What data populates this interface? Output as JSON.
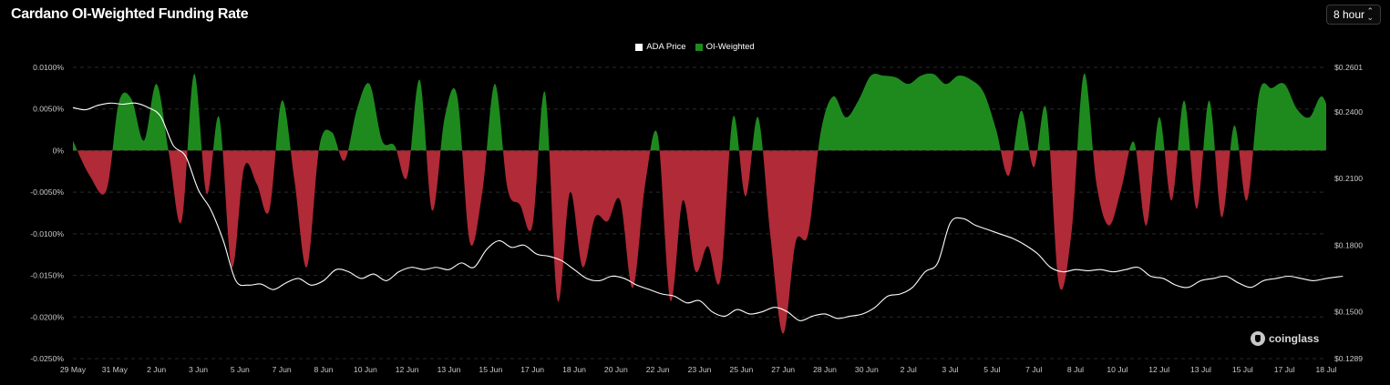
{
  "header": {
    "title": "Cardano OI-Weighted Funding Rate",
    "period_select": {
      "value": "8 hour",
      "icon": "chevron-up-down-icon"
    }
  },
  "legend": [
    {
      "label": "ADA Price",
      "color": "#ffffff"
    },
    {
      "label": "OI-Weighted",
      "color": "#1e8a1e"
    }
  ],
  "watermark": {
    "text": "coinglass",
    "icon": "coinglass-logo-icon"
  },
  "colors": {
    "positive": "#1e8a1e",
    "negative": "#b02a37",
    "price_line": "#ffffff",
    "grid": "#2a2a2a"
  },
  "chart_data": {
    "type": "area",
    "x_tick_labels": [
      "29 May",
      "31 May",
      "2 Jun",
      "3 Jun",
      "5 Jun",
      "7 Jun",
      "8 Jun",
      "10 Jun",
      "12 Jun",
      "13 Jun",
      "15 Jun",
      "17 Jun",
      "18 Jun",
      "20 Jun",
      "22 Jun",
      "23 Jun",
      "25 Jun",
      "27 Jun",
      "28 Jun",
      "30 Jun",
      "2 Jul",
      "3 Jul",
      "5 Jul",
      "7 Jul",
      "8 Jul",
      "10 Jul",
      "12 Jul",
      "13 Jul",
      "15 Jul",
      "17 Jul",
      "18 Jul"
    ],
    "y_left": {
      "ticks": [
        "0.0100%",
        "0.0050%",
        "0%",
        "-0.0050%",
        "-0.0100%",
        "-0.0150%",
        "-0.0200%",
        "-0.0250%"
      ],
      "ylim": [
        -0.025,
        0.01
      ],
      "unit": "%"
    },
    "y_right": {
      "ticks": [
        "$0.2601",
        "$0.2400",
        "$0.2100",
        "$0.1800",
        "$0.1500",
        "$0.1289"
      ],
      "ylim": [
        0.1289,
        0.2601
      ]
    },
    "series": [
      {
        "name": "OI-Weighted",
        "axis": "left",
        "x": [
          0,
          0.4,
          0.8,
          1.1,
          1.4,
          1.7,
          2.0,
          2.3,
          2.6,
          2.9,
          3.2,
          3.5,
          3.8,
          4.1,
          4.4,
          4.7,
          5.0,
          5.3,
          5.6,
          5.9,
          6.2,
          6.5,
          6.8,
          7.1,
          7.4,
          7.7,
          8.0,
          8.3,
          8.6,
          8.9,
          9.2,
          9.5,
          9.8,
          10.1,
          10.4,
          10.7,
          11.0,
          11.3,
          11.6,
          11.9,
          12.2,
          12.5,
          12.8,
          13.1,
          13.4,
          13.7,
          14.0,
          14.3,
          14.6,
          14.9,
          15.2,
          15.5,
          15.8,
          16.1,
          16.4,
          16.7,
          17.0,
          17.3,
          17.6,
          17.9,
          18.2,
          18.5,
          18.8,
          19.1,
          19.4,
          19.7,
          20.0,
          20.3,
          20.6,
          20.9,
          21.2,
          21.5,
          21.8,
          22.1,
          22.4,
          22.7,
          23.0,
          23.3,
          23.6,
          23.9,
          24.2,
          24.5,
          24.8,
          25.1,
          25.4,
          25.7,
          26.0,
          26.3,
          26.6,
          26.9,
          27.2,
          27.5,
          27.8,
          28.1,
          28.4,
          28.7,
          29.0,
          29.3,
          29.6,
          29.9,
          30.2,
          30.4
        ],
        "values": [
          0.0012,
          -0.003,
          -0.0048,
          0.0058,
          0.0062,
          0.0012,
          0.008,
          -0.0004,
          -0.0085,
          0.0092,
          -0.0052,
          0.004,
          -0.014,
          -0.002,
          -0.004,
          -0.0072,
          0.006,
          -0.0035,
          -0.014,
          0.0005,
          0.0022,
          -0.0012,
          0.005,
          0.008,
          0.0012,
          0.0006,
          -0.0032,
          0.0085,
          -0.0072,
          0.004,
          0.0065,
          -0.011,
          -0.005,
          0.008,
          -0.0045,
          -0.0065,
          -0.009,
          0.007,
          -0.018,
          -0.005,
          -0.014,
          -0.008,
          -0.0085,
          -0.006,
          -0.0165,
          -0.004,
          0.0018,
          -0.018,
          -0.006,
          -0.0145,
          -0.0115,
          -0.0155,
          0.004,
          -0.0055,
          0.004,
          -0.0105,
          -0.022,
          -0.011,
          -0.01,
          0.0022,
          0.0065,
          0.004,
          0.006,
          0.009,
          0.009,
          0.0088,
          0.008,
          0.009,
          0.0092,
          0.008,
          0.009,
          0.0085,
          0.007,
          0.0025,
          -0.003,
          0.0048,
          -0.002,
          0.005,
          -0.016,
          -0.01,
          0.0092,
          -0.004,
          -0.009,
          -0.0045,
          0.001,
          -0.009,
          0.004,
          -0.006,
          0.006,
          -0.007,
          0.006,
          -0.008,
          0.003,
          -0.006,
          0.007,
          0.0075,
          0.008,
          0.005,
          0.004,
          0.0065,
          0.003,
          0.0055
        ]
      },
      {
        "name": "ADA Price",
        "axis": "right",
        "x": [
          0,
          0.3,
          0.6,
          0.9,
          1.2,
          1.5,
          1.8,
          2.1,
          2.4,
          2.7,
          3.0,
          3.3,
          3.6,
          3.9,
          4.2,
          4.5,
          4.8,
          5.1,
          5.4,
          5.7,
          6.0,
          6.3,
          6.6,
          6.9,
          7.2,
          7.5,
          7.8,
          8.1,
          8.4,
          8.7,
          9.0,
          9.3,
          9.6,
          9.9,
          10.2,
          10.5,
          10.8,
          11.1,
          11.4,
          11.7,
          12.0,
          12.3,
          12.6,
          12.9,
          13.2,
          13.5,
          13.8,
          14.1,
          14.4,
          14.7,
          15.0,
          15.3,
          15.6,
          15.9,
          16.2,
          16.5,
          16.8,
          17.1,
          17.4,
          17.7,
          18.0,
          18.3,
          18.6,
          18.9,
          19.2,
          19.5,
          19.8,
          20.1,
          20.4,
          20.7,
          21.0,
          21.3,
          21.6,
          21.9,
          22.2,
          22.5,
          22.8,
          23.1,
          23.4,
          23.7,
          24.0,
          24.3,
          24.6,
          24.9,
          25.2,
          25.5,
          25.8,
          26.1,
          26.4,
          26.7,
          27.0,
          27.3,
          27.6,
          27.9,
          28.2,
          28.5,
          28.8,
          29.1,
          29.4,
          29.7,
          30.0,
          30.4
        ],
        "values": [
          0.242,
          0.241,
          0.243,
          0.244,
          0.2435,
          0.244,
          0.242,
          0.238,
          0.225,
          0.22,
          0.205,
          0.196,
          0.182,
          0.164,
          0.162,
          0.1625,
          0.16,
          0.163,
          0.165,
          0.162,
          0.164,
          0.169,
          0.168,
          0.165,
          0.167,
          0.164,
          0.168,
          0.17,
          0.169,
          0.17,
          0.169,
          0.172,
          0.17,
          0.178,
          0.182,
          0.179,
          0.18,
          0.176,
          0.175,
          0.173,
          0.169,
          0.165,
          0.164,
          0.166,
          0.165,
          0.162,
          0.16,
          0.158,
          0.157,
          0.154,
          0.155,
          0.15,
          0.148,
          0.151,
          0.149,
          0.15,
          0.152,
          0.15,
          0.146,
          0.148,
          0.149,
          0.147,
          0.148,
          0.149,
          0.152,
          0.157,
          0.158,
          0.161,
          0.168,
          0.172,
          0.19,
          0.192,
          0.189,
          0.187,
          0.185,
          0.183,
          0.18,
          0.176,
          0.17,
          0.168,
          0.169,
          0.1685,
          0.169,
          0.168,
          0.169,
          0.17,
          0.166,
          0.165,
          0.162,
          0.161,
          0.164,
          0.165,
          0.166,
          0.163,
          0.161,
          0.164,
          0.165,
          0.166,
          0.165,
          0.164,
          0.165,
          0.166
        ]
      }
    ],
    "grid": true,
    "legend_position": "top-center"
  }
}
